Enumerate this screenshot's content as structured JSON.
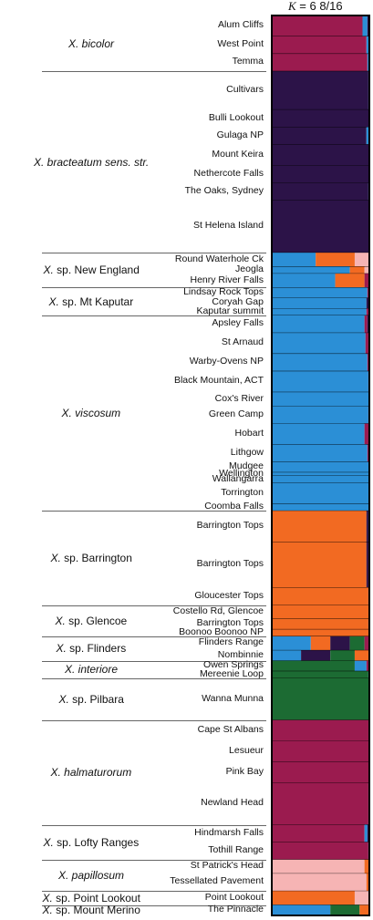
{
  "chart_data": {
    "type": "stacked-bar",
    "title_k_label": "K",
    "title_value": " = 6 8/16",
    "cluster_colors": {
      "magenta": "#9b1b4f",
      "purple": "#2c1348",
      "blue": "#2b8fd6",
      "orange": "#f26a22",
      "green": "#1c6b33",
      "pink": "#f6b4b4"
    },
    "groups": [
      {
        "species_prefix": "",
        "species_name": "X. bicolor",
        "populations": [
          {
            "name": "Alum Cliffs",
            "n": 6,
            "q": {
              "magenta": 0.93,
              "blue": 0.05,
              "purple": 0.02
            }
          },
          {
            "name": "West Point",
            "n": 5,
            "q": {
              "magenta": 0.97,
              "blue": 0.03
            }
          },
          {
            "name": "Temma",
            "n": 5,
            "q": {
              "magenta": 0.98,
              "blue": 0.02
            }
          }
        ]
      },
      {
        "species_prefix": "",
        "species_name": "X. bracteatum sens. str.",
        "populations": [
          {
            "name": "Cultivars",
            "n": 11,
            "q": {
              "purple": 0.99,
              "blue": 0.01
            }
          },
          {
            "name": "Bulli Lookout",
            "n": 5,
            "q": {
              "purple": 1.0
            }
          },
          {
            "name": "Gulaga NP",
            "n": 5,
            "q": {
              "purple": 0.97,
              "blue": 0.03
            }
          },
          {
            "name": "Mount Keira",
            "n": 6,
            "q": {
              "purple": 1.0
            }
          },
          {
            "name": "Nethercote Falls",
            "n": 5,
            "q": {
              "purple": 1.0
            }
          },
          {
            "name": "The Oaks, Sydney",
            "n": 5,
            "q": {
              "purple": 0.99,
              "blue": 0.01
            }
          },
          {
            "name": "St Helena Island",
            "n": 15,
            "q": {
              "purple": 1.0
            }
          }
        ]
      },
      {
        "species_prefix": "X.",
        "species_name": " sp. New England",
        "populations": [
          {
            "name": "Round Waterhole Ck",
            "n": 4,
            "q": {
              "blue": 0.45,
              "orange": 0.4,
              "pink": 0.15
            }
          },
          {
            "name": "Jeogla",
            "n": 2,
            "q": {
              "blue": 0.8,
              "orange": 0.15,
              "pink": 0.05
            }
          },
          {
            "name": "Henry River Falls",
            "n": 4,
            "q": {
              "blue": 0.65,
              "orange": 0.3,
              "magenta": 0.05
            }
          }
        ]
      },
      {
        "species_prefix": "X.",
        "species_name": " sp. Mt Kaputar",
        "populations": [
          {
            "name": "Lindsay Rock Tops",
            "n": 3,
            "q": {
              "blue": 0.98,
              "magenta": 0.02
            }
          },
          {
            "name": "Coryah Gap",
            "n": 3,
            "q": {
              "blue": 0.97,
              "purple": 0.03
            }
          },
          {
            "name": "Kaputar summit",
            "n": 2,
            "q": {
              "blue": 0.97,
              "magenta": 0.03
            }
          }
        ]
      },
      {
        "species_prefix": "",
        "species_name": "X. viscosum",
        "populations": [
          {
            "name": "Apsley Falls",
            "n": 5,
            "q": {
              "blue": 0.95,
              "magenta": 0.03,
              "purple": 0.02
            }
          },
          {
            "name": "St Arnaud",
            "n": 6,
            "q": {
              "blue": 0.96,
              "magenta": 0.04
            }
          },
          {
            "name": "Warby-Ovens NP",
            "n": 5,
            "q": {
              "blue": 0.98,
              "magenta": 0.02
            }
          },
          {
            "name": "Black Mountain, ACT",
            "n": 6,
            "q": {
              "blue": 0.99,
              "magenta": 0.01
            }
          },
          {
            "name": "Cox's River",
            "n": 4,
            "q": {
              "blue": 1.0
            }
          },
          {
            "name": "Green Camp",
            "n": 5,
            "q": {
              "blue": 0.99,
              "magenta": 0.01
            }
          },
          {
            "name": "Hobart",
            "n": 6,
            "q": {
              "blue": 0.95,
              "magenta": 0.05
            }
          },
          {
            "name": "Lithgow",
            "n": 5,
            "q": {
              "blue": 0.98,
              "magenta": 0.02
            }
          },
          {
            "name": "Mudgee",
            "n": 3,
            "q": {
              "blue": 1.0
            }
          },
          {
            "name": "Wellington",
            "n": 1,
            "q": {
              "blue": 1.0
            }
          },
          {
            "name": "Wallangarra",
            "n": 2,
            "q": {
              "blue": 1.0
            }
          },
          {
            "name": "Torrington",
            "n": 6,
            "q": {
              "blue": 1.0
            }
          },
          {
            "name": "Coomba Falls",
            "n": 2,
            "q": {
              "blue": 1.0
            }
          }
        ]
      },
      {
        "species_prefix": "X.",
        "species_name": " sp. Barrington",
        "populations": [
          {
            "name": "Barrington Tops",
            "n": 9,
            "q": {
              "orange": 0.97,
              "purple": 0.02,
              "blue": 0.01
            }
          },
          {
            "name": "Barrington Tops",
            "n": 13,
            "q": {
              "orange": 0.97,
              "purple": 0.02,
              "magenta": 0.01
            }
          },
          {
            "name": "Gloucester Tops",
            "n": 5,
            "q": {
              "orange": 0.99,
              "purple": 0.01
            }
          }
        ]
      },
      {
        "species_prefix": "X.",
        "species_name": " sp. Glencoe",
        "populations": [
          {
            "name": "Costello Rd, Glencoe",
            "n": 4,
            "q": {
              "orange": 1.0
            }
          },
          {
            "name": "Barrington Tops",
            "n": 3,
            "q": {
              "orange": 0.99,
              "purple": 0.01
            }
          },
          {
            "name": "Boonoo Boonoo NP",
            "n": 2,
            "q": {
              "orange": 1.0
            }
          }
        ]
      },
      {
        "species_prefix": "X.",
        "species_name": " sp. Flinders",
        "populations": [
          {
            "name": "Flinders Range",
            "n": 4,
            "q": {
              "blue": 0.4,
              "orange": 0.2,
              "purple": 0.2,
              "green": 0.15,
              "magenta": 0.05
            }
          },
          {
            "name": "Nombinnie",
            "n": 3,
            "q": {
              "blue": 0.3,
              "purple": 0.3,
              "green": 0.25,
              "orange": 0.15
            }
          }
        ]
      },
      {
        "species_prefix": "",
        "species_name": "X. interiore",
        "populations": [
          {
            "name": "Owen Springs",
            "n": 3,
            "q": {
              "green": 0.85,
              "blue": 0.12,
              "magenta": 0.03
            }
          },
          {
            "name": "Mereenie Loop",
            "n": 2,
            "q": {
              "green": 0.99,
              "blue": 0.01
            }
          }
        ]
      },
      {
        "species_prefix": "X.",
        "species_name": " sp. Pilbara",
        "populations": [
          {
            "name": "Wanna Munna",
            "n": 12,
            "q": {
              "green": 1.0
            }
          }
        ]
      },
      {
        "species_prefix": "",
        "species_name": "X. halmaturorum",
        "populations": [
          {
            "name": "Cape St Albans",
            "n": 6,
            "q": {
              "magenta": 1.0
            }
          },
          {
            "name": "Lesueur",
            "n": 6,
            "q": {
              "magenta": 1.0
            }
          },
          {
            "name": "Pink Bay",
            "n": 6,
            "q": {
              "magenta": 1.0
            }
          },
          {
            "name": "Newland Head",
            "n": 12,
            "q": {
              "magenta": 0.99,
              "purple": 0.01
            }
          }
        ]
      },
      {
        "species_prefix": "X.",
        "species_name": " sp. Lofty Ranges",
        "populations": [
          {
            "name": "Hindmarsh Falls",
            "n": 5,
            "q": {
              "magenta": 0.95,
              "blue": 0.03,
              "purple": 0.02
            }
          },
          {
            "name": "Tothill Range",
            "n": 5,
            "q": {
              "magenta": 0.99,
              "blue": 0.01
            }
          }
        ]
      },
      {
        "species_prefix": "",
        "species_name": "X. papillosum",
        "populations": [
          {
            "name": "St Patrick's Head",
            "n": 4,
            "q": {
              "pink": 0.95,
              "orange": 0.05
            }
          },
          {
            "name": "Tessellated Pavement",
            "n": 5,
            "q": {
              "pink": 0.97,
              "orange": 0.03
            }
          }
        ]
      },
      {
        "species_prefix": "X.",
        "species_name": " sp. Point Lookout",
        "populations": [
          {
            "name": "Point Lookout",
            "n": 4,
            "q": {
              "orange": 0.85,
              "pink": 0.15
            }
          }
        ]
      },
      {
        "species_prefix": "X.",
        "species_name": " sp. Mount Merino",
        "populations": [
          {
            "name": "The Pinnacle",
            "n": 3,
            "q": {
              "blue": 0.6,
              "green": 0.3,
              "orange": 0.1
            }
          }
        ]
      }
    ]
  }
}
